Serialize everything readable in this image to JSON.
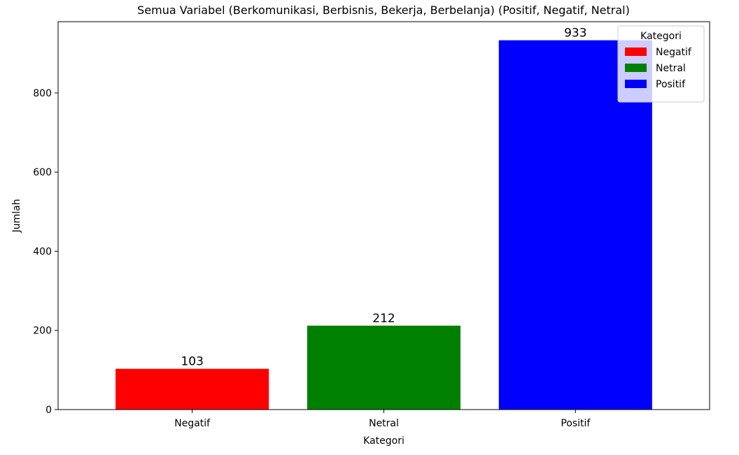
{
  "chart_data": {
    "type": "bar",
    "title": "Semua Variabel (Berkomunikasi, Berbisnis, Bekerja, Berbelanja) (Positif, Negatif, Netral)",
    "xlabel": "Kategori",
    "ylabel": "Jumlah",
    "categories": [
      "Negatif",
      "Netral",
      "Positif"
    ],
    "values": [
      103,
      212,
      933
    ],
    "colors": [
      "#ff0000",
      "#008000",
      "#0000ff"
    ],
    "data_labels": [
      "103",
      "212",
      "933"
    ],
    "ylim": [
      0,
      980
    ],
    "yticks": [
      0,
      200,
      400,
      600,
      800
    ],
    "ytick_labels": [
      "0",
      "200",
      "400",
      "600",
      "800"
    ],
    "grid": false,
    "legend": {
      "title": "Kategori",
      "placement": "top-right",
      "entries": [
        {
          "label": "Negatif",
          "color": "#ff0000"
        },
        {
          "label": "Netral",
          "color": "#008000"
        },
        {
          "label": "Positif",
          "color": "#0000ff"
        }
      ]
    }
  }
}
